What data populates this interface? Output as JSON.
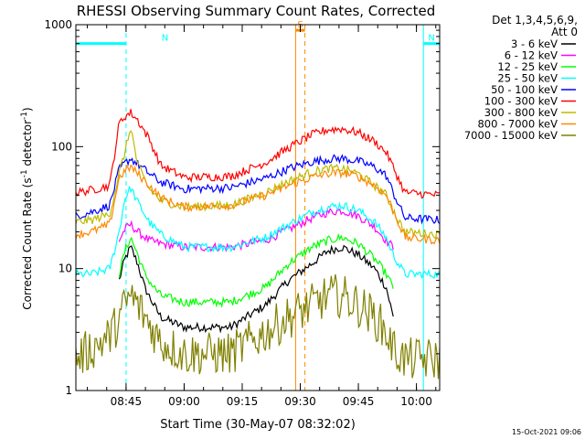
{
  "chart_data": {
    "type": "line",
    "title": "RHESSI Observing Summary Count Rates, Corrected",
    "xlabel": "Start Time (30-May-07 08:32:02)",
    "ylabel_main": "Corrected Count Rate (s",
    "ylabel_sup1": "-1",
    "ylabel_mid": " detector",
    "ylabel_sup2": "-1",
    "ylabel_end": ")",
    "yscale": "log",
    "ylim": [
      1,
      1000
    ],
    "xlim": [
      8.5339,
      10.1
    ],
    "x_ticks": [
      {
        "x": 8.75,
        "label": "08:45"
      },
      {
        "x": 9.0,
        "label": "09:00"
      },
      {
        "x": 9.25,
        "label": "09:15"
      },
      {
        "x": 9.5,
        "label": "09:30"
      },
      {
        "x": 9.75,
        "label": "09:45"
      },
      {
        "x": 10.0,
        "label": "10:00"
      }
    ],
    "y_ticks": [
      {
        "y": 1,
        "label": "1"
      },
      {
        "y": 10,
        "label": "10"
      },
      {
        "y": 100,
        "label": "100"
      },
      {
        "y": 1000,
        "label": "1000"
      }
    ],
    "legend_header": [
      "Det 1,3,4,5,6,9,",
      "Att 0"
    ],
    "timestamp": "15-Oct-2021 09:06",
    "series": [
      {
        "name": "3 - 6 keV",
        "color": "#000000",
        "values": [
          [
            8.72,
            8
          ],
          [
            8.745,
            12
          ],
          [
            8.77,
            15
          ],
          [
            8.8,
            11
          ],
          [
            8.83,
            7
          ],
          [
            8.87,
            5
          ],
          [
            8.9,
            4
          ],
          [
            9.0,
            3.3
          ],
          [
            9.2,
            3.3
          ],
          [
            9.35,
            5
          ],
          [
            9.45,
            8
          ],
          [
            9.55,
            11
          ],
          [
            9.62,
            14
          ],
          [
            9.68,
            15
          ],
          [
            9.75,
            13
          ],
          [
            9.82,
            10
          ],
          [
            9.87,
            7
          ],
          [
            9.9,
            4
          ]
        ]
      },
      {
        "name": "6 - 12 keV",
        "color": "#ff00ff",
        "values": [
          [
            8.72,
            17
          ],
          [
            8.745,
            21
          ],
          [
            8.77,
            23
          ],
          [
            8.8,
            20
          ],
          [
            8.85,
            17
          ],
          [
            8.9,
            16
          ],
          [
            9.0,
            15
          ],
          [
            9.2,
            15
          ],
          [
            9.35,
            17
          ],
          [
            9.45,
            21
          ],
          [
            9.55,
            26
          ],
          [
            9.62,
            29
          ],
          [
            9.68,
            30
          ],
          [
            9.75,
            27
          ],
          [
            9.82,
            22
          ],
          [
            9.87,
            17
          ],
          [
            9.9,
            15
          ]
        ]
      },
      {
        "name": "12 - 25 keV",
        "color": "#00ff00",
        "values": [
          [
            8.72,
            9
          ],
          [
            8.745,
            14
          ],
          [
            8.77,
            18
          ],
          [
            8.8,
            13
          ],
          [
            8.83,
            9
          ],
          [
            8.87,
            7
          ],
          [
            8.9,
            6
          ],
          [
            9.0,
            5.3
          ],
          [
            9.2,
            5.3
          ],
          [
            9.35,
            7
          ],
          [
            9.45,
            11
          ],
          [
            9.55,
            15
          ],
          [
            9.62,
            17
          ],
          [
            9.68,
            18
          ],
          [
            9.75,
            16
          ],
          [
            9.82,
            12
          ],
          [
            9.87,
            9
          ],
          [
            9.9,
            7
          ]
        ]
      },
      {
        "name": "25 - 50 keV",
        "color": "#00ffff",
        "values": [
          [
            8.5339,
            9
          ],
          [
            8.6,
            9
          ],
          [
            8.68,
            10
          ],
          [
            8.72,
            20
          ],
          [
            8.745,
            38
          ],
          [
            8.77,
            46
          ],
          [
            8.8,
            35
          ],
          [
            8.85,
            24
          ],
          [
            8.9,
            19
          ],
          [
            9.0,
            15
          ],
          [
            9.2,
            15
          ],
          [
            9.35,
            18
          ],
          [
            9.45,
            23
          ],
          [
            9.55,
            29
          ],
          [
            9.62,
            32
          ],
          [
            9.68,
            33
          ],
          [
            9.75,
            30
          ],
          [
            9.82,
            24
          ],
          [
            9.87,
            18
          ],
          [
            9.9,
            13
          ],
          [
            9.95,
            9
          ],
          [
            10.1,
            9
          ]
        ]
      },
      {
        "name": "50 - 100 keV",
        "color": "#0000ff",
        "values": [
          [
            8.5339,
            27
          ],
          [
            8.6,
            29
          ],
          [
            8.68,
            33
          ],
          [
            8.72,
            65
          ],
          [
            8.745,
            73
          ],
          [
            8.77,
            80
          ],
          [
            8.8,
            72
          ],
          [
            8.85,
            60
          ],
          [
            8.9,
            51
          ],
          [
            9.0,
            45
          ],
          [
            9.2,
            46
          ],
          [
            9.35,
            55
          ],
          [
            9.45,
            66
          ],
          [
            9.55,
            75
          ],
          [
            9.62,
            79
          ],
          [
            9.68,
            80
          ],
          [
            9.75,
            76
          ],
          [
            9.82,
            68
          ],
          [
            9.87,
            58
          ],
          [
            9.9,
            42
          ],
          [
            9.95,
            26
          ],
          [
            10.1,
            25
          ]
        ]
      },
      {
        "name": "100 - 300 keV",
        "color": "#ff0000",
        "values": [
          [
            8.5339,
            42
          ],
          [
            8.6,
            44
          ],
          [
            8.68,
            48
          ],
          [
            8.72,
            155
          ],
          [
            8.745,
            178
          ],
          [
            8.77,
            190
          ],
          [
            8.8,
            165
          ],
          [
            8.85,
            115
          ],
          [
            8.9,
            70
          ],
          [
            9.0,
            56
          ],
          [
            9.2,
            57
          ],
          [
            9.35,
            74
          ],
          [
            9.45,
            98
          ],
          [
            9.55,
            125
          ],
          [
            9.62,
            138
          ],
          [
            9.68,
            140
          ],
          [
            9.75,
            130
          ],
          [
            9.82,
            110
          ],
          [
            9.87,
            90
          ],
          [
            9.9,
            68
          ],
          [
            9.95,
            42
          ],
          [
            10.1,
            40
          ]
        ]
      },
      {
        "name": "300 - 800 keV",
        "color": "#bbbb00",
        "values": [
          [
            8.5339,
            24
          ],
          [
            8.6,
            25
          ],
          [
            8.68,
            28
          ],
          [
            8.72,
            60
          ],
          [
            8.745,
            90
          ],
          [
            8.77,
            145
          ],
          [
            8.8,
            70
          ],
          [
            8.85,
            45
          ],
          [
            8.9,
            36
          ],
          [
            9.0,
            32
          ],
          [
            9.2,
            33
          ],
          [
            9.35,
            42
          ],
          [
            9.45,
            52
          ],
          [
            9.55,
            62
          ],
          [
            9.62,
            66
          ],
          [
            9.68,
            66
          ],
          [
            9.75,
            60
          ],
          [
            9.82,
            48
          ],
          [
            9.87,
            40
          ],
          [
            9.9,
            30
          ],
          [
            9.95,
            20
          ],
          [
            10.1,
            19
          ]
        ]
      },
      {
        "name": "800 - 7000 keV",
        "color": "#ff8800",
        "values": [
          [
            8.5339,
            19
          ],
          [
            8.6,
            20
          ],
          [
            8.68,
            23
          ],
          [
            8.72,
            56
          ],
          [
            8.745,
            63
          ],
          [
            8.77,
            68
          ],
          [
            8.8,
            60
          ],
          [
            8.85,
            48
          ],
          [
            8.9,
            38
          ],
          [
            9.0,
            32
          ],
          [
            9.2,
            33
          ],
          [
            9.35,
            40
          ],
          [
            9.45,
            48
          ],
          [
            9.55,
            56
          ],
          [
            9.62,
            60
          ],
          [
            9.68,
            61
          ],
          [
            9.75,
            57
          ],
          [
            9.82,
            48
          ],
          [
            9.87,
            40
          ],
          [
            9.9,
            30
          ],
          [
            9.95,
            18
          ],
          [
            10.1,
            17
          ]
        ]
      },
      {
        "name": "7000 - 15000 keV",
        "color": "#808000",
        "values": [
          [
            8.5339,
            1.8
          ],
          [
            8.6,
            2.2
          ],
          [
            8.68,
            2.8
          ],
          [
            8.72,
            3.8
          ],
          [
            8.745,
            5
          ],
          [
            8.77,
            6
          ],
          [
            8.8,
            5
          ],
          [
            8.85,
            3.5
          ],
          [
            8.9,
            2.5
          ],
          [
            9.0,
            2
          ],
          [
            9.2,
            2
          ],
          [
            9.35,
            3
          ],
          [
            9.45,
            4
          ],
          [
            9.55,
            5
          ],
          [
            9.62,
            6
          ],
          [
            9.68,
            6
          ],
          [
            9.75,
            5
          ],
          [
            9.82,
            4
          ],
          [
            9.87,
            3
          ],
          [
            9.9,
            2.2
          ],
          [
            9.95,
            1.8
          ],
          [
            10.1,
            1.8
          ]
        ]
      }
    ],
    "markers": [
      {
        "label": "N",
        "color": "#00ffff",
        "bar_start": 8.5339,
        "bar_end": 8.75,
        "bar_y": 700,
        "dashed_x": 8.75
      },
      {
        "label": "N",
        "color": "#00ffff",
        "bar_start": 10.03,
        "bar_end": 10.1,
        "bar_y": 700,
        "dashed_x": 10.1
      },
      {
        "label": "S",
        "color": "#ff8800",
        "bar_start": 9.48,
        "bar_end": 9.52,
        "bar_y": 900,
        "dashed_x": 9.52
      }
    ]
  }
}
